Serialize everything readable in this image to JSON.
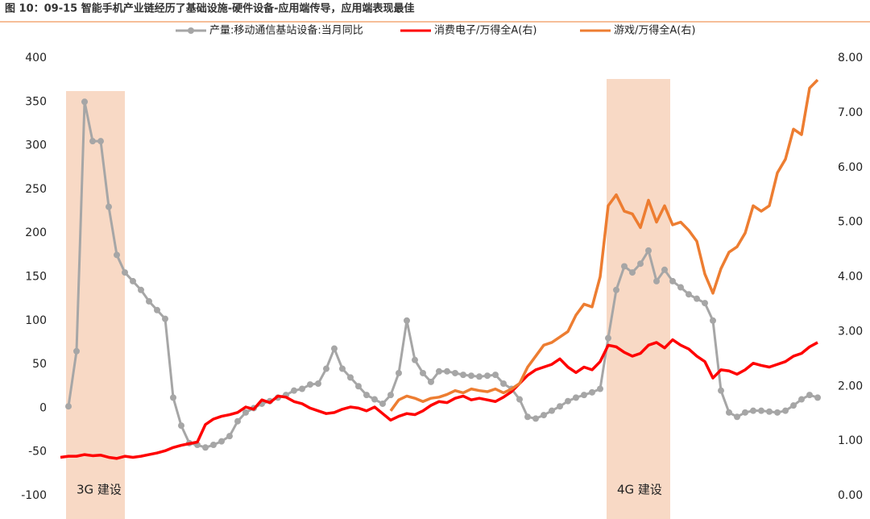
{
  "chart_data": {
    "type": "line",
    "title": "图 10：09-15 智能手机产业链经历了基础设施-硬件设备-应用端传导，应用端表现最佳",
    "ylim": [
      -100,
      400
    ],
    "yticks": [
      -100,
      -50,
      0,
      50,
      100,
      150,
      200,
      250,
      300,
      350,
      400
    ],
    "y2lim": [
      0,
      8
    ],
    "y2ticks": [
      {
        "value": 0,
        "label": "0.00"
      },
      {
        "value": 1,
        "label": "1.00"
      },
      {
        "value": 2,
        "label": "2.00"
      },
      {
        "value": 3,
        "label": "3.00"
      },
      {
        "value": 4,
        "label": "4.00"
      },
      {
        "value": 5,
        "label": "5.00"
      },
      {
        "value": 6,
        "label": "6.00"
      },
      {
        "value": 7,
        "label": "7.00"
      },
      {
        "value": 8,
        "label": "8.00"
      }
    ],
    "annotations": [
      "3G 建设",
      "4G 建设"
    ],
    "series": [
      {
        "name": "产量:移动通信基站设备:当月同比",
        "color": "#a6a6a6",
        "markers": true,
        "values": [
          null,
          2,
          65,
          350,
          305,
          305,
          230,
          175,
          155,
          145,
          135,
          122,
          112,
          102,
          12,
          -20,
          -40,
          -42,
          -45,
          -42,
          -38,
          -32,
          -15,
          -5,
          0,
          5,
          8,
          12,
          15,
          20,
          22,
          27,
          28,
          45,
          68,
          45,
          35,
          25,
          15,
          10,
          5,
          15,
          40,
          100,
          55,
          40,
          30,
          42,
          42,
          40,
          38,
          37,
          36,
          37,
          38,
          28,
          22,
          10,
          -10,
          -12,
          -8,
          -3,
          2,
          8,
          12,
          15,
          18,
          22,
          80,
          135,
          162,
          155,
          165,
          180,
          145,
          158,
          145,
          138,
          130,
          125,
          120,
          100,
          20,
          -5,
          -10,
          -5,
          -3,
          -3,
          -4,
          -5,
          -3,
          3,
          10,
          15,
          12
        ]
      },
      {
        "name": "消费电子/万得全A(右)",
        "color": "#ff0000",
        "axis": "y2",
        "values": [
          0.7,
          0.72,
          0.72,
          0.75,
          0.73,
          0.74,
          0.7,
          0.68,
          0.72,
          0.7,
          0.72,
          0.75,
          0.78,
          0.82,
          0.88,
          0.92,
          0.95,
          0.98,
          1.3,
          1.4,
          1.45,
          1.48,
          1.52,
          1.62,
          1.58,
          1.75,
          1.7,
          1.82,
          1.8,
          1.72,
          1.68,
          1.6,
          1.55,
          1.5,
          1.52,
          1.58,
          1.62,
          1.6,
          1.55,
          1.62,
          1.5,
          1.38,
          1.45,
          1.5,
          1.48,
          1.55,
          1.65,
          1.72,
          1.7,
          1.78,
          1.82,
          1.75,
          1.78,
          1.75,
          1.72,
          1.8,
          1.9,
          2.05,
          2.2,
          2.3,
          2.35,
          2.4,
          2.5,
          2.35,
          2.25,
          2.35,
          2.3,
          2.45,
          2.75,
          2.72,
          2.62,
          2.55,
          2.6,
          2.75,
          2.8,
          2.7,
          2.85,
          2.75,
          2.68,
          2.55,
          2.45,
          2.15,
          2.3,
          2.28,
          2.22,
          2.3,
          2.42,
          2.38,
          2.35,
          2.4,
          2.45,
          2.55,
          2.6,
          2.72,
          2.8
        ]
      },
      {
        "name": "游戏/万得全A(右)",
        "color": "#ed7d31",
        "axis": "y2",
        "values": [
          null,
          null,
          null,
          null,
          null,
          null,
          null,
          null,
          null,
          null,
          null,
          null,
          null,
          null,
          null,
          null,
          null,
          null,
          null,
          null,
          null,
          null,
          null,
          null,
          null,
          null,
          null,
          null,
          null,
          null,
          null,
          null,
          null,
          null,
          null,
          null,
          null,
          null,
          null,
          null,
          null,
          1.55,
          1.75,
          1.82,
          1.78,
          1.72,
          1.78,
          1.8,
          1.85,
          1.92,
          1.88,
          1.95,
          1.92,
          1.9,
          1.95,
          1.88,
          1.95,
          2.05,
          2.35,
          2.55,
          2.75,
          2.8,
          2.9,
          3.0,
          3.3,
          3.5,
          3.45,
          4.0,
          5.3,
          5.5,
          5.2,
          5.15,
          4.9,
          5.4,
          5.0,
          5.3,
          4.95,
          5.0,
          4.85,
          4.65,
          4.05,
          3.7,
          4.15,
          4.45,
          4.55,
          4.8,
          5.3,
          5.2,
          5.3,
          5.9,
          6.15,
          6.7,
          6.6,
          7.45,
          7.6
        ]
      }
    ]
  }
}
